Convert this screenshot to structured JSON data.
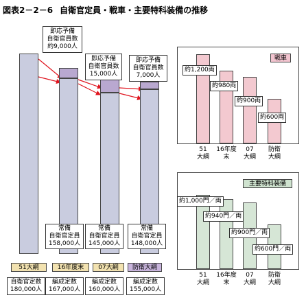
{
  "title": {
    "fig": "図表2－2－6",
    "text": "自衛官定員・戦車・主要特科装備の推移"
  },
  "colors": {
    "manpower_bar": "#c9ccdf",
    "reserve_seg": "#b9a8d0",
    "tank_bar": "#f3c9d0",
    "artillery_bar": "#d6e6d6",
    "chip_tan": "#f2e2b0",
    "chip_purple": "#c8b4dc",
    "tank_tag": "#f2c4cf",
    "artillery_tag": "#cfe3cf"
  },
  "chart_data": [
    {
      "type": "bar",
      "categories": [
        "51大綱",
        "16年度末",
        "07大綱",
        "防衛大綱"
      ],
      "series": [
        {
          "name": "常備自衛官定員",
          "values": [
            180000,
            158000,
            145000,
            148000
          ]
        },
        {
          "name": "即応予備自衛官員数",
          "values": [
            0,
            9000,
            15000,
            7000
          ]
        }
      ],
      "category_chips": [
        "51大綱",
        "16年度末",
        "07大綱",
        "防衛大綱"
      ],
      "reserve_labels": [
        {
          "l1": "即応予備",
          "l2": "自衛官員数",
          "l3": "約9,000人"
        },
        {
          "l1": "即応予備",
          "l2": "自衛官員数",
          "l3": "15,000人"
        },
        {
          "l1": "即応予備",
          "l2": "自衛官員数",
          "l3": "7,000人"
        }
      ],
      "regular_labels": [
        {
          "l1": "常備",
          "l2": "自衛官定員",
          "l3": "158,000人"
        },
        {
          "l1": "常備",
          "l2": "自衛官定員",
          "l3": "145,000人"
        },
        {
          "l1": "常備",
          "l2": "自衛官定員",
          "l3": "148,000人"
        }
      ],
      "bottom_labels": [
        {
          "l1": "自衛官定数",
          "l2": "180,000人"
        },
        {
          "l1": "編成定数",
          "l2": "167,000人"
        },
        {
          "l1": "編成定数",
          "l2": "160,000人"
        },
        {
          "l1": "編成定数",
          "l2": "155,000人"
        }
      ]
    },
    {
      "type": "bar",
      "title": "戦車",
      "categories": [
        "51大綱",
        "16年度末",
        "07大綱",
        "防衛大綱"
      ],
      "values": [
        1200,
        980,
        900,
        600
      ],
      "value_labels": [
        "約1,200両",
        "約980両",
        "約900両",
        "約600両"
      ]
    },
    {
      "type": "bar",
      "title": "主要特科装備",
      "categories": [
        "51大綱",
        "16年度末",
        "07大綱",
        "防衛大綱"
      ],
      "values": [
        1000,
        940,
        900,
        600
      ],
      "value_labels": [
        "約1,000門／両",
        "約940門／両",
        "約900門／両",
        "約600門／両"
      ]
    }
  ],
  "x_labels": [
    {
      "l1": "51",
      "l2": "大綱"
    },
    {
      "l1": "16年度",
      "l2": "末"
    },
    {
      "l1": "07",
      "l2": "大綱"
    },
    {
      "l1": "防衛",
      "l2": "大綱"
    }
  ]
}
